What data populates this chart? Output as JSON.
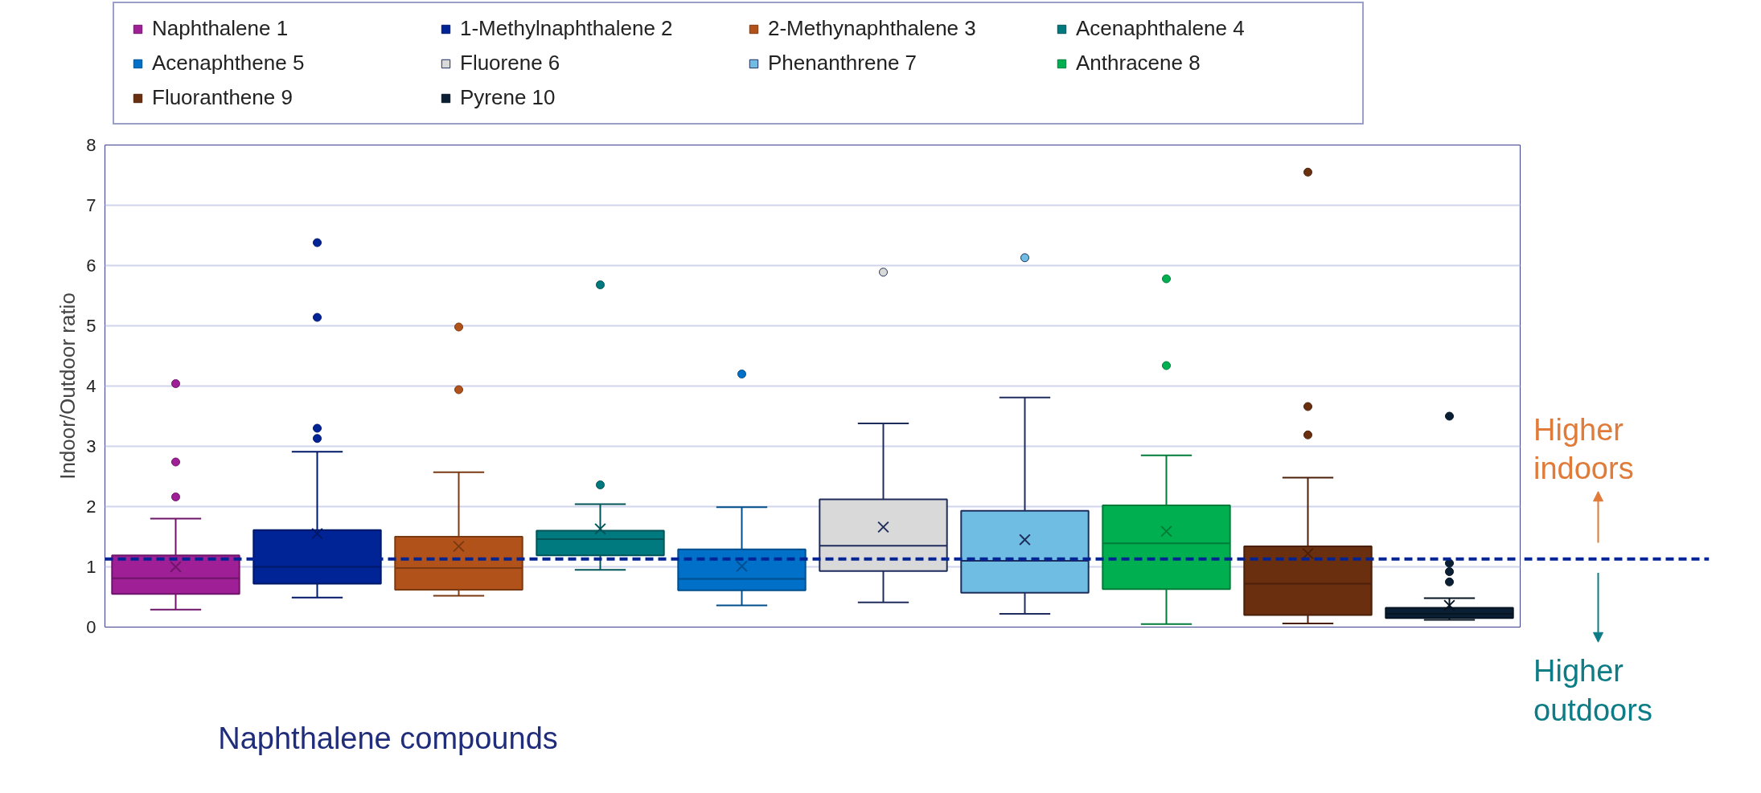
{
  "chart_data": {
    "type": "box",
    "ylabel": "Indoor/Outdoor ratio",
    "categories": [
      null,
      null,
      null,
      null,
      null,
      null,
      null,
      null,
      null,
      null
    ],
    "ylim": [
      0,
      8
    ],
    "yticks": [
      0,
      1,
      2,
      3,
      4,
      5,
      6,
      7,
      8
    ],
    "grid": "y",
    "legend": "top",
    "tick_labels": "y",
    "ref_lines": [
      {
        "axis": "y",
        "value": 1.13,
        "color": "#002395",
        "line_style": "dashed"
      }
    ],
    "annotations": [
      "Naphthalene compounds",
      "Higher indoors",
      "Higher outdoors"
    ],
    "series": [
      {
        "name": "Naphthalene 1",
        "color": "#9e1f96",
        "boxes": [
          {
            "low": 0.29,
            "q1": 0.55,
            "median": 0.81,
            "q3": 1.19,
            "high": 1.8,
            "mean": 1.0,
            "outliers": [
              4.04,
              2.74,
              2.16
            ]
          },
          null,
          null,
          null,
          null,
          null,
          null,
          null,
          null,
          null
        ]
      },
      {
        "name": "1-Methylnaphthalene 2",
        "color": "#002395",
        "boxes": [
          null,
          {
            "low": 0.49,
            "q1": 0.72,
            "median": 1.0,
            "q3": 1.61,
            "high": 2.91,
            "mean": 1.55,
            "outliers": [
              6.38,
              5.14,
              3.3,
              3.13
            ]
          },
          null,
          null,
          null,
          null,
          null,
          null,
          null,
          null
        ]
      },
      {
        "name": "2-Methynaphthalene 3",
        "color": "#b0521a",
        "boxes": [
          null,
          null,
          {
            "low": 0.52,
            "q1": 0.62,
            "median": 0.98,
            "q3": 1.5,
            "high": 2.57,
            "mean": 1.34,
            "outliers": [
              4.98,
              3.94
            ]
          },
          null,
          null,
          null,
          null,
          null,
          null,
          null
        ]
      },
      {
        "name": "Acenaphthalene 4",
        "color": "#00797f",
        "boxes": [
          null,
          null,
          null,
          {
            "low": 0.95,
            "q1": 1.19,
            "median": 1.46,
            "q3": 1.6,
            "high": 2.04,
            "mean": 1.63,
            "outliers": [
              5.68,
              2.36
            ]
          },
          null,
          null,
          null,
          null,
          null,
          null
        ]
      },
      {
        "name": "Acenaphthene 5",
        "color": "#0070c8",
        "boxes": [
          null,
          null,
          null,
          null,
          {
            "low": 0.36,
            "q1": 0.61,
            "median": 0.8,
            "q3": 1.29,
            "high": 1.99,
            "mean": 1.01,
            "outliers": [
              4.2
            ]
          },
          null,
          null,
          null,
          null,
          null
        ]
      },
      {
        "name": "Fluorene 6",
        "color": "#d9d9d9",
        "boxes": [
          null,
          null,
          null,
          null,
          null,
          {
            "low": 0.41,
            "q1": 0.93,
            "median": 1.35,
            "q3": 2.12,
            "high": 3.38,
            "mean": 1.66,
            "outliers": [
              5.89
            ]
          },
          null,
          null,
          null,
          null
        ]
      },
      {
        "name": "Phenanthrene 7",
        "color": "#6fbde3",
        "boxes": [
          null,
          null,
          null,
          null,
          null,
          null,
          {
            "low": 0.22,
            "q1": 0.57,
            "median": 1.1,
            "q3": 1.93,
            "high": 3.81,
            "mean": 1.45,
            "outliers": [
              6.13
            ]
          },
          null,
          null,
          null
        ]
      },
      {
        "name": "Anthracene 8",
        "color": "#00b050",
        "boxes": [
          null,
          null,
          null,
          null,
          null,
          null,
          null,
          {
            "low": 0.05,
            "q1": 0.63,
            "median": 1.39,
            "q3": 2.02,
            "high": 2.85,
            "mean": 1.59,
            "outliers": [
              5.78,
              4.34
            ]
          },
          null,
          null
        ]
      },
      {
        "name": "Fluoranthene 9",
        "color": "#6a2f0f",
        "boxes": [
          null,
          null,
          null,
          null,
          null,
          null,
          null,
          null,
          {
            "low": 0.06,
            "q1": 0.2,
            "median": 0.72,
            "q3": 1.34,
            "high": 2.48,
            "mean": 1.22,
            "outliers": [
              7.55,
              3.66,
              3.19
            ]
          },
          null
        ]
      },
      {
        "name": "Pyrene 10",
        "color": "#0a1f33",
        "boxes": [
          null,
          null,
          null,
          null,
          null,
          null,
          null,
          null,
          null,
          {
            "low": 0.12,
            "q1": 0.15,
            "median": 0.22,
            "q3": 0.32,
            "high": 0.48,
            "mean": 0.36,
            "outliers": [
              3.5,
              1.06,
              0.92,
              0.75
            ]
          }
        ]
      }
    ]
  }
}
